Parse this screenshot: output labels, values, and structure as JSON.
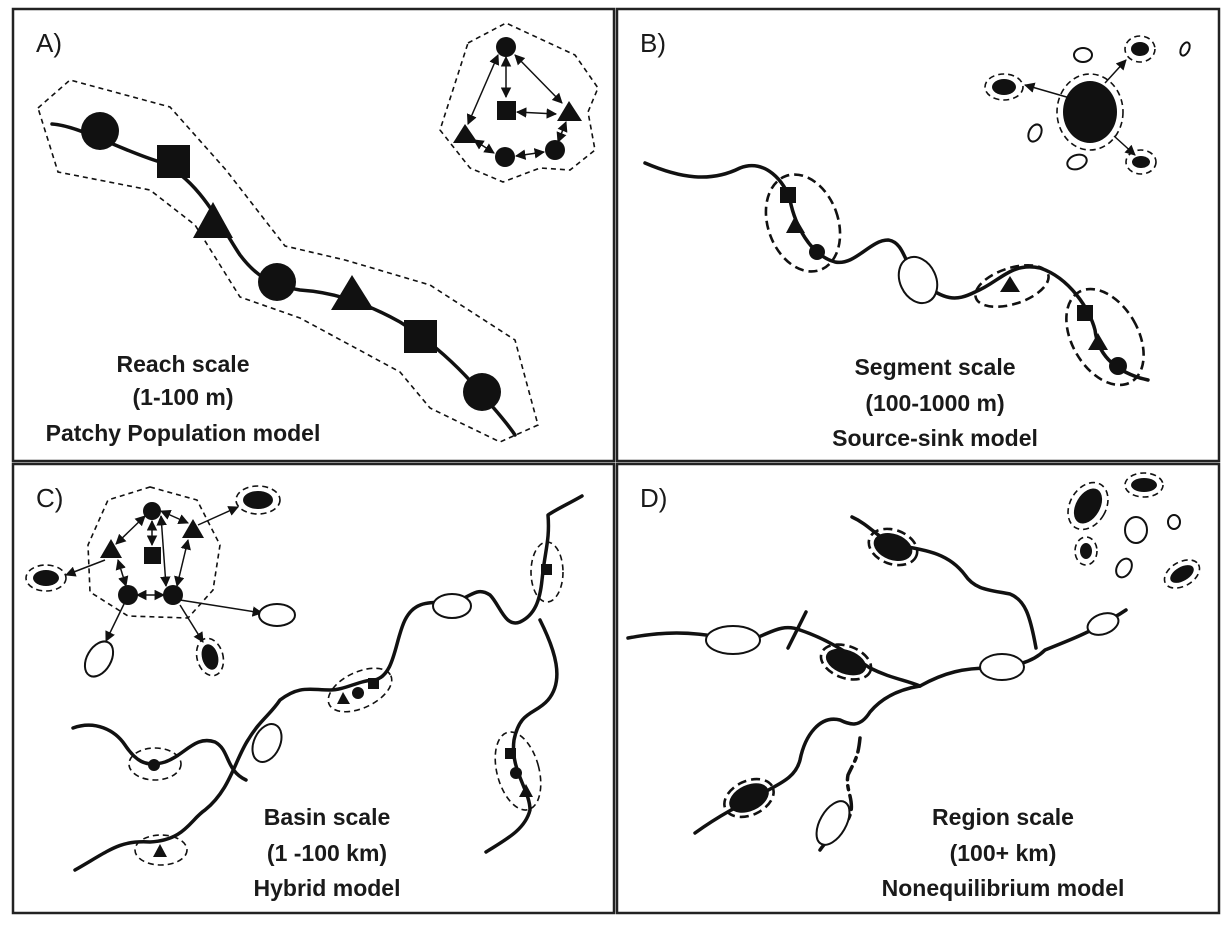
{
  "panels": [
    {
      "label": "A)",
      "caption": [
        "Reach scale",
        "(1-100 m)",
        "Patchy Population model"
      ]
    },
    {
      "label": "B)",
      "caption": [
        "Segment scale",
        "(100-1000 m)",
        "Source-sink model"
      ]
    },
    {
      "label": "C)",
      "caption": [
        "Basin scale",
        "(1 -100 km)",
        "Hybrid model"
      ]
    },
    {
      "label": "D)",
      "caption": [
        "Region scale",
        "(100+ km)",
        "Nonequilibrium model"
      ]
    }
  ],
  "colors": {
    "ink": "#111111",
    "background": "#ffffff",
    "frame": "#222222"
  }
}
